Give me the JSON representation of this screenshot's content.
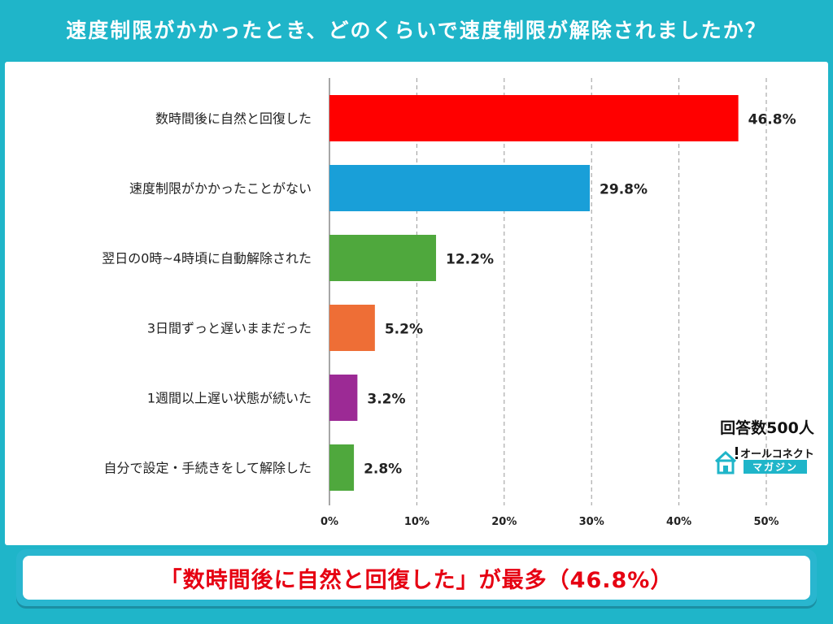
{
  "header": {
    "title": "速度制限がかかったとき、どのくらいで速度制限が解除されましたか？"
  },
  "summary": {
    "text": "「数時間後に自然と回復した」が最多（46.8%）"
  },
  "respondents": "回答数500人",
  "logo": {
    "name": "オールコネクト",
    "sub": "マガジン",
    "icon": "house-icon"
  },
  "chart_data": {
    "type": "bar",
    "orientation": "horizontal",
    "categories": [
      "数時間後に自然と回復した",
      "速度制限がかかったことがない",
      "翌日の0時~4時頃に自動解除された",
      "3日間ずっと遅いままだった",
      "1週間以上遅い状態が続いた",
      "自分で設定・手続きをして解除した"
    ],
    "values": [
      46.8,
      29.8,
      12.2,
      5.2,
      3.2,
      2.8
    ],
    "value_labels": [
      "46.8%",
      "29.8%",
      "12.2%",
      "5.2%",
      "3.2%",
      "2.8%"
    ],
    "colors": [
      "#ff0000",
      "#199fd8",
      "#4fa83d",
      "#ee6e36",
      "#9c2a95",
      "#4fa83d"
    ],
    "xlim": [
      0,
      50
    ],
    "xticks": [
      0,
      10,
      20,
      30,
      40,
      50
    ],
    "xtick_labels": [
      "0%",
      "10%",
      "20%",
      "30%",
      "40%",
      "50%"
    ],
    "grid": "vertical dashed"
  }
}
